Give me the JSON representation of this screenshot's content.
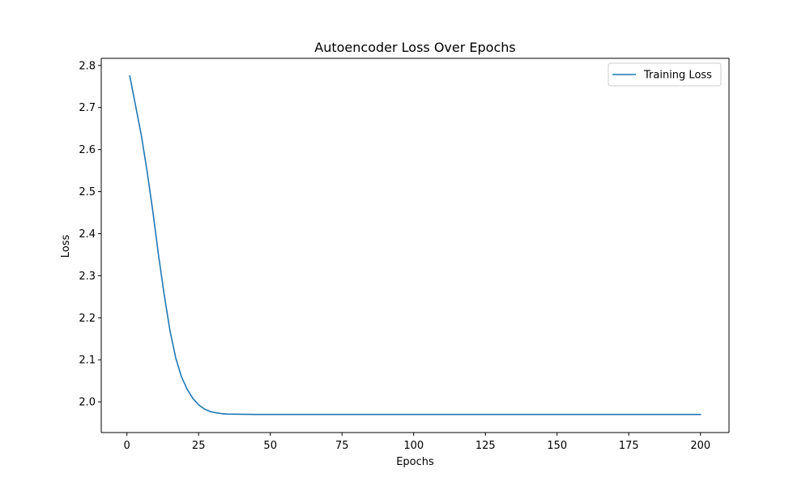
{
  "chart_data": {
    "type": "line",
    "title": "Autoencoder Loss Over Epochs",
    "xlabel": "Epochs",
    "ylabel": "Loss",
    "xlim": [
      -8.95,
      209.95
    ],
    "ylim": [
      1.927,
      2.817
    ],
    "xticks": [
      0,
      25,
      50,
      75,
      100,
      125,
      150,
      175,
      200
    ],
    "yticks": [
      2.0,
      2.1,
      2.2,
      2.3,
      2.4,
      2.5,
      2.6,
      2.7,
      2.8
    ],
    "ytick_labels": [
      "2.0",
      "2.1",
      "2.2",
      "2.3",
      "2.4",
      "2.5",
      "2.6",
      "2.7",
      "2.8"
    ],
    "grid": false,
    "legend_position": "top-right",
    "series": [
      {
        "name": "Training Loss",
        "color": "#1f77b4",
        "x": [
          1,
          3,
          5,
          7,
          9,
          11,
          13,
          15,
          17,
          19,
          21,
          23,
          25,
          27,
          29,
          31,
          33,
          35,
          40,
          45,
          50,
          75,
          100,
          125,
          150,
          175,
          200
        ],
        "y": [
          2.775,
          2.705,
          2.635,
          2.55,
          2.455,
          2.35,
          2.255,
          2.17,
          2.105,
          2.06,
          2.03,
          2.008,
          1.993,
          1.983,
          1.977,
          1.974,
          1.972,
          1.971,
          1.9705,
          1.97,
          1.97,
          1.97,
          1.97,
          1.97,
          1.97,
          1.97,
          1.97
        ]
      }
    ]
  }
}
